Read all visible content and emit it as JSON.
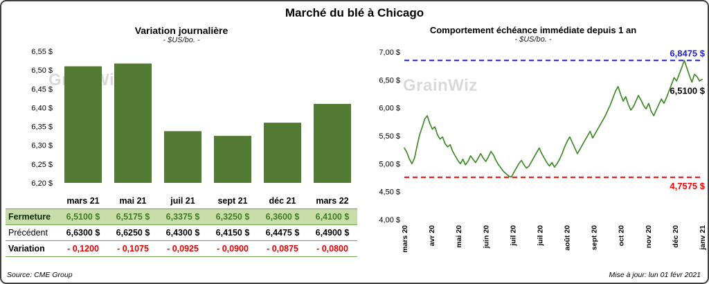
{
  "page": {
    "title": "Marché du blé à Chicago",
    "source": "Source: CME Group",
    "updated": "Mise à jour: lun 01 févr 2021",
    "watermark": "GrainWiz"
  },
  "table": {
    "accent": "#6fa84c",
    "row_bg": "#c8dcaa",
    "fermeture_color": "#3f7d23",
    "variation_color": "#e60000",
    "columns": [
      "mars 21",
      "mai 21",
      "juil 21",
      "sept 21",
      "déc 21",
      "mars 22"
    ],
    "rows": [
      {
        "name": "fermeture",
        "label": "Fermeture",
        "values": [
          "6,5100 $",
          "6,5175 $",
          "6,3375 $",
          "6,3250 $",
          "6,3600 $",
          "6,4100 $"
        ]
      },
      {
        "name": "precedent",
        "label": "Précédent",
        "values": [
          "6,6300 $",
          "6,6250 $",
          "6,4300 $",
          "6,4150 $",
          "6,4475 $",
          "6,4900 $"
        ]
      },
      {
        "name": "variation",
        "label": "Variation",
        "values": [
          "- 0,1200",
          "- 0,1075",
          "- 0,0925",
          "- 0,0900",
          "- 0,0875",
          "- 0,0800"
        ]
      }
    ]
  },
  "chart_data": [
    {
      "type": "bar",
      "title": "Variation journalière",
      "subtitle": "- $US/bo. -",
      "categories": [
        "mars 21",
        "mai 21",
        "juil 21",
        "sept 21",
        "déc 21",
        "mars 22"
      ],
      "values": [
        6.51,
        6.5175,
        6.3375,
        6.325,
        6.36,
        6.41
      ],
      "ylim": [
        6.2,
        6.55
      ],
      "bar_color": "#527a33",
      "grid": false,
      "yticks": [
        {
          "v": 6.2,
          "label": "6,20 $"
        },
        {
          "v": 6.25,
          "label": "6,25 $"
        },
        {
          "v": 6.3,
          "label": "6,30 $"
        },
        {
          "v": 6.35,
          "label": "6,35 $"
        },
        {
          "v": 6.4,
          "label": "6,40 $"
        },
        {
          "v": 6.45,
          "label": "6,45 $"
        },
        {
          "v": 6.5,
          "label": "6,50 $"
        },
        {
          "v": 6.55,
          "label": "6,55 $"
        }
      ]
    },
    {
      "type": "line",
      "title": "Comportement échéance immédiate depuis 1 an",
      "subtitle": "- $US/bo. -",
      "line_color": "#3f8a28",
      "ylim": [
        4.0,
        7.0
      ],
      "grid": false,
      "yticks": [
        {
          "v": 4.0,
          "label": "4,00 $"
        },
        {
          "v": 4.5,
          "label": "4,50 $"
        },
        {
          "v": 5.0,
          "label": "5,00 $"
        },
        {
          "v": 5.5,
          "label": "5,50 $"
        },
        {
          "v": 6.0,
          "label": "6,00 $"
        },
        {
          "v": 6.5,
          "label": "6,50 $"
        },
        {
          "v": 7.0,
          "label": "7,00 $"
        }
      ],
      "x_labels": [
        "mars 20",
        "avr 20",
        "mai 20",
        "juin 20",
        "juil 20",
        "juil 20",
        "août 20",
        "sept 20",
        "oct 20",
        "nov 20",
        "déc 20",
        "janv 21"
      ],
      "values": [
        5.28,
        5.2,
        5.08,
        5.0,
        5.1,
        5.32,
        5.52,
        5.65,
        5.8,
        5.86,
        5.72,
        5.62,
        5.66,
        5.52,
        5.44,
        5.48,
        5.36,
        5.3,
        5.34,
        5.22,
        5.14,
        5.06,
        5.0,
        5.08,
        4.98,
        5.04,
        5.14,
        5.08,
        5.02,
        5.1,
        5.18,
        5.1,
        5.04,
        5.12,
        5.22,
        5.16,
        5.06,
        4.98,
        4.92,
        4.86,
        4.82,
        4.78,
        4.76,
        4.84,
        4.92,
        5.0,
        5.06,
        4.98,
        4.92,
        4.96,
        5.04,
        5.12,
        5.2,
        5.28,
        5.18,
        5.1,
        5.02,
        4.96,
        5.02,
        4.94,
        5.0,
        5.08,
        5.18,
        5.3,
        5.4,
        5.48,
        5.38,
        5.28,
        5.18,
        5.26,
        5.34,
        5.42,
        5.5,
        5.58,
        5.46,
        5.54,
        5.62,
        5.7,
        5.78,
        5.86,
        5.96,
        6.06,
        6.18,
        6.3,
        6.38,
        6.24,
        6.12,
        6.2,
        6.06,
        5.96,
        6.02,
        6.12,
        6.22,
        6.14,
        6.04,
        5.98,
        6.08,
        5.94,
        5.86,
        5.96,
        6.06,
        6.16,
        6.08,
        6.18,
        6.3,
        6.42,
        6.54,
        6.48,
        6.6,
        6.72,
        6.85,
        6.72,
        6.58,
        6.46,
        6.6,
        6.56,
        6.48,
        6.51
      ],
      "reference_lines": [
        {
          "name": "high",
          "value": 6.8475,
          "label": "6,8475 $",
          "color": "#2222cc"
        },
        {
          "name": "low",
          "value": 4.7575,
          "label": "4,7575 $",
          "color": "#ff0000"
        }
      ],
      "last_point": {
        "value": 6.51,
        "label": "6,5100 $",
        "color": "#000000"
      }
    }
  ]
}
